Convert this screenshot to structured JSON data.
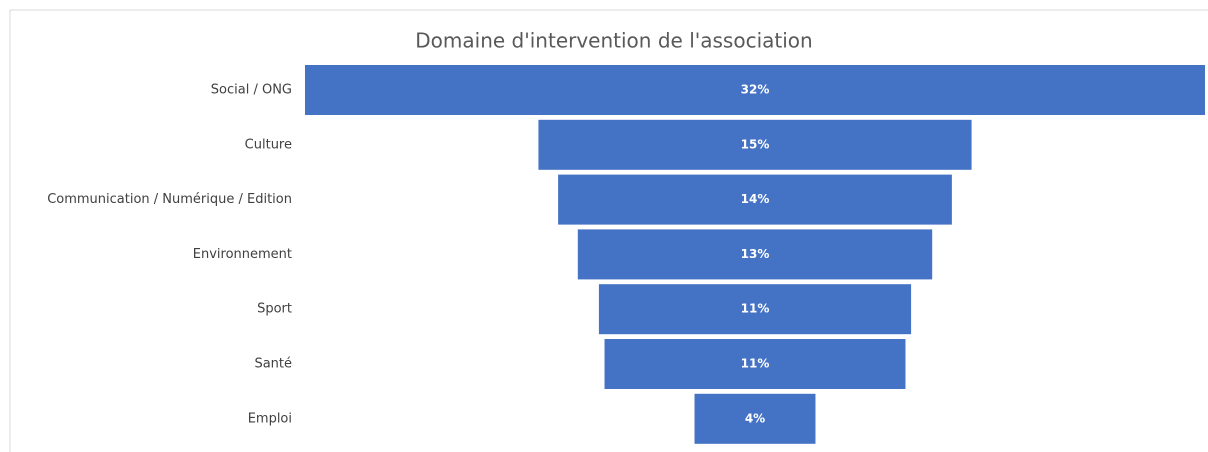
{
  "chart_data": {
    "type": "funnel",
    "title": "Domaine d'intervention de l'association",
    "categories": [
      "Social / ONG",
      "Culture",
      "Communication / Numérique  / Edition",
      "Environnement",
      "Sport",
      "Santé",
      "Emploi"
    ],
    "values": [
      32,
      15.4,
      14,
      12.6,
      11.1,
      10.7,
      4.3
    ],
    "value_labels": [
      "32%",
      "15%",
      "14%",
      "13%",
      "11%",
      "11%",
      "4%"
    ],
    "color": "#4472c4"
  }
}
